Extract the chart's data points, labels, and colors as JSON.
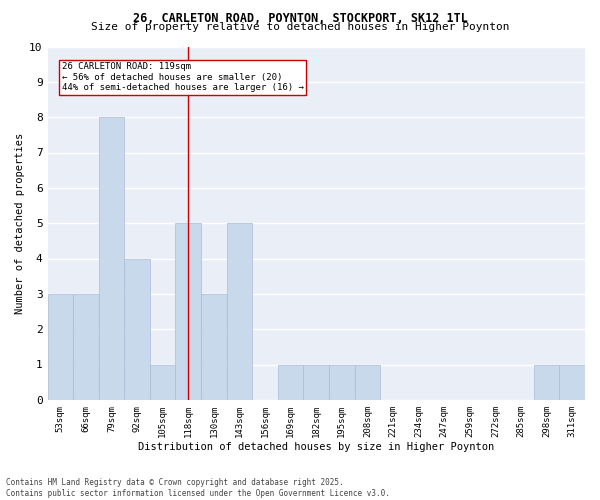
{
  "title": "26, CARLETON ROAD, POYNTON, STOCKPORT, SK12 1TL",
  "subtitle": "Size of property relative to detached houses in Higher Poynton",
  "xlabel": "Distribution of detached houses by size in Higher Poynton",
  "ylabel": "Number of detached properties",
  "categories": [
    "53sqm",
    "66sqm",
    "79sqm",
    "92sqm",
    "105sqm",
    "118sqm",
    "130sqm",
    "143sqm",
    "156sqm",
    "169sqm",
    "182sqm",
    "195sqm",
    "208sqm",
    "221sqm",
    "234sqm",
    "247sqm",
    "259sqm",
    "272sqm",
    "285sqm",
    "298sqm",
    "311sqm"
  ],
  "values": [
    3,
    3,
    8,
    4,
    1,
    5,
    3,
    5,
    0,
    1,
    1,
    1,
    1,
    0,
    0,
    0,
    0,
    0,
    0,
    1,
    1
  ],
  "bar_color": "#c9d9ec",
  "bar_edge_color": "#aabdd6",
  "vline_x": 5,
  "vline_color": "#cc0000",
  "ylim": [
    0,
    10
  ],
  "yticks": [
    0,
    1,
    2,
    3,
    4,
    5,
    6,
    7,
    8,
    9,
    10
  ],
  "annotation_text": "26 CARLETON ROAD: 119sqm\n← 56% of detached houses are smaller (20)\n44% of semi-detached houses are larger (16) →",
  "annotation_box_color": "#ffffff",
  "annotation_box_edge": "#cc0000",
  "bg_color": "#eaeff7",
  "footer1": "Contains HM Land Registry data © Crown copyright and database right 2025.",
  "footer2": "Contains public sector information licensed under the Open Government Licence v3.0."
}
